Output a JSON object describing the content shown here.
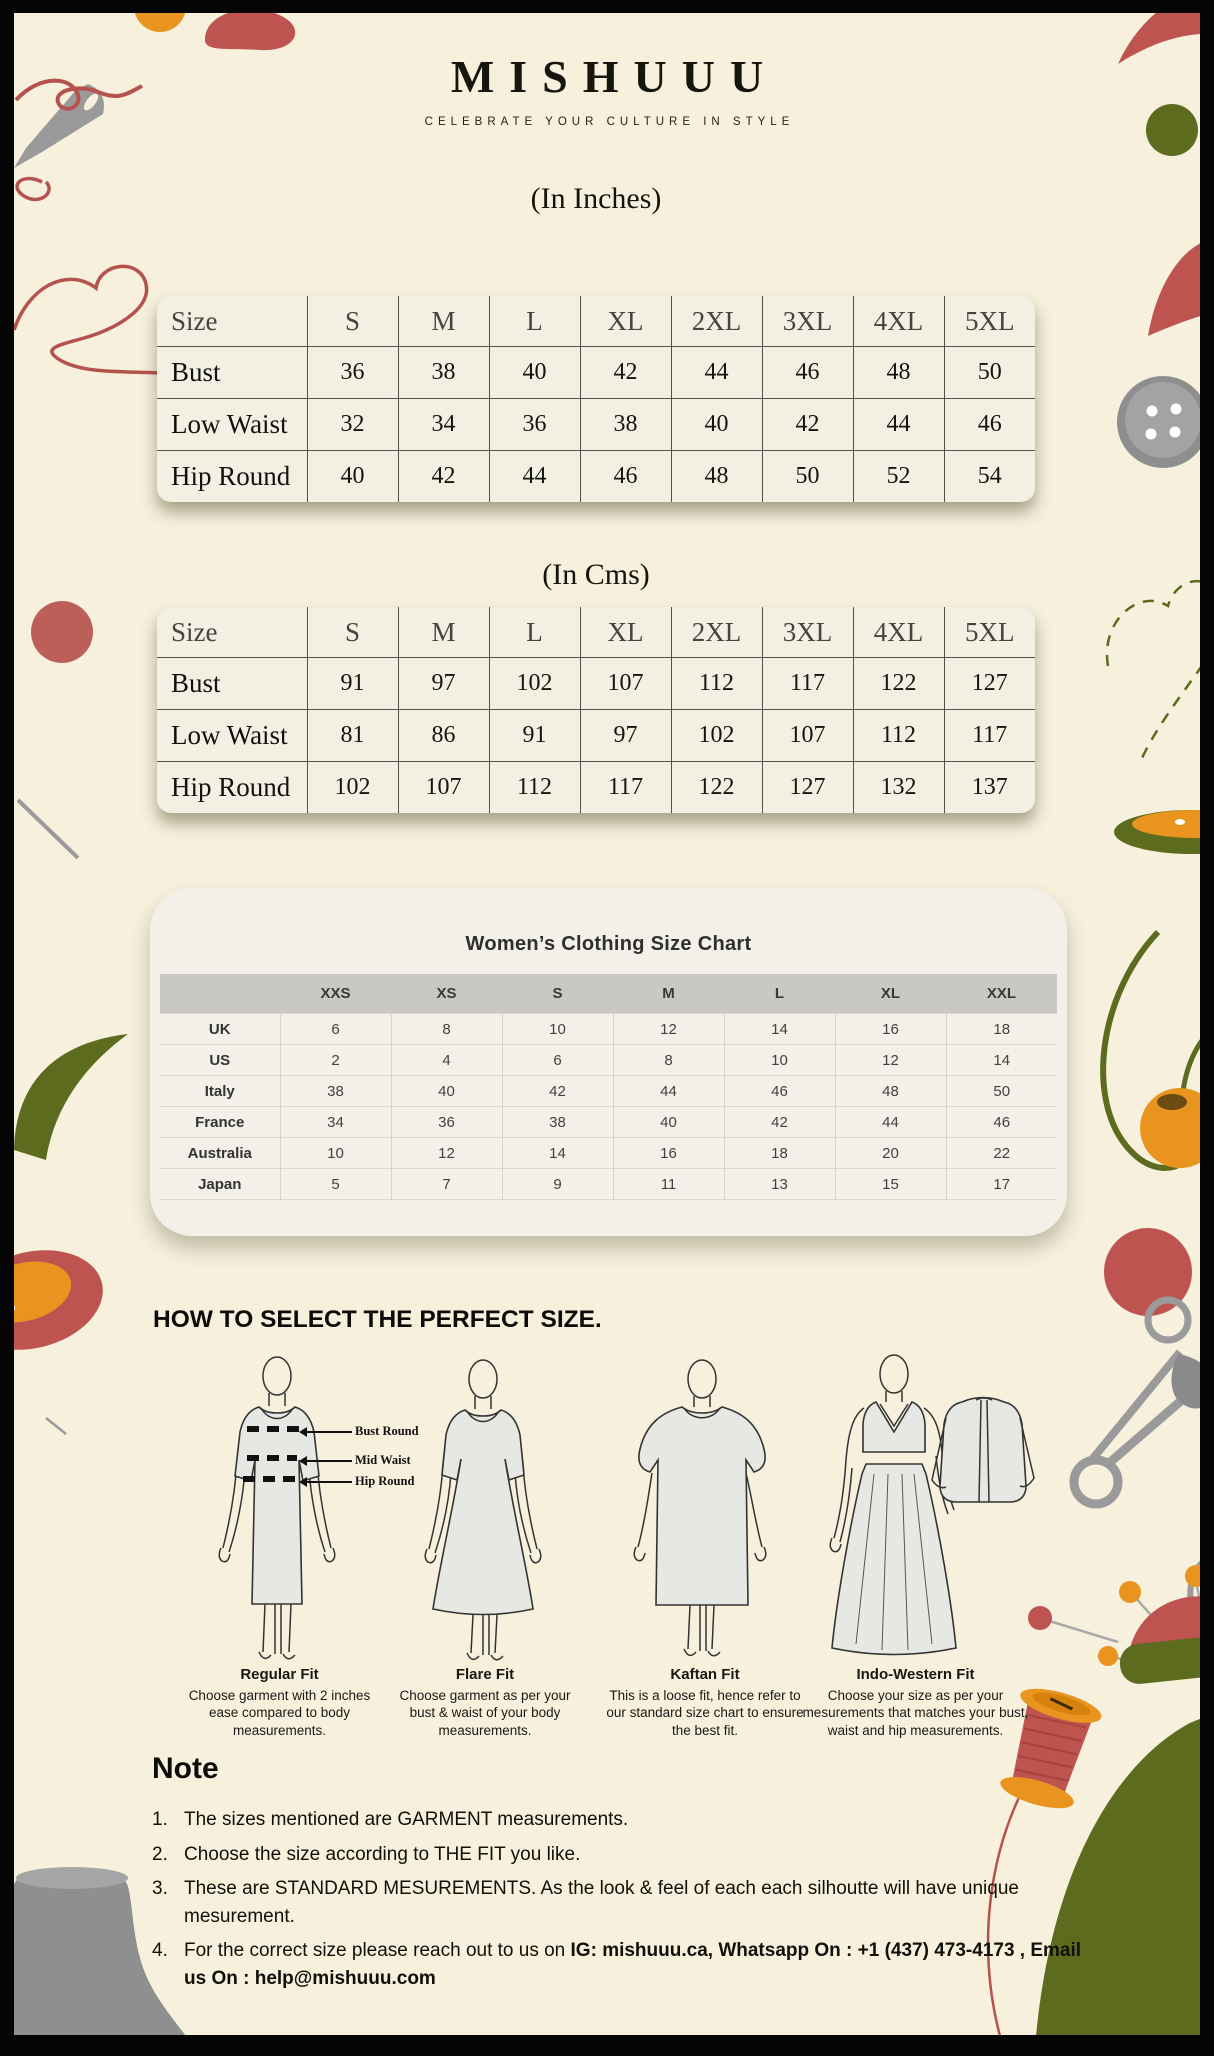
{
  "brand": {
    "name": "MISHUUU",
    "tagline": "CELEBRATE YOUR CULTURE IN STYLE"
  },
  "inches_table": {
    "title": "(In Inches)",
    "header": [
      "Size",
      "S",
      "M",
      "L",
      "XL",
      "2XL",
      "3XL",
      "4XL",
      "5XL"
    ],
    "rows": [
      {
        "label": "Bust",
        "values": [
          36,
          38,
          40,
          42,
          44,
          46,
          48,
          50
        ]
      },
      {
        "label": "Low Waist",
        "values": [
          32,
          34,
          36,
          38,
          40,
          42,
          44,
          46
        ]
      },
      {
        "label": "Hip Round",
        "values": [
          40,
          42,
          44,
          46,
          48,
          50,
          52,
          54
        ]
      }
    ]
  },
  "cms_table": {
    "title": "(In Cms)",
    "header": [
      "Size",
      "S",
      "M",
      "L",
      "XL",
      "2XL",
      "3XL",
      "4XL",
      "5XL"
    ],
    "rows": [
      {
        "label": "Bust",
        "values": [
          91,
          97,
          102,
          107,
          112,
          117,
          122,
          127
        ]
      },
      {
        "label": "Low Waist",
        "values": [
          81,
          86,
          91,
          97,
          102,
          107,
          112,
          117
        ]
      },
      {
        "label": "Hip Round",
        "values": [
          102,
          107,
          112,
          117,
          122,
          127,
          132,
          137
        ]
      }
    ]
  },
  "womens_chart": {
    "title": "Women’s Clothing Size Chart",
    "header": [
      "",
      "XXS",
      "XS",
      "S",
      "M",
      "L",
      "XL",
      "XXL"
    ],
    "rows": [
      {
        "label": "UK",
        "values": [
          6,
          8,
          10,
          12,
          14,
          16,
          18
        ]
      },
      {
        "label": "US",
        "values": [
          2,
          4,
          6,
          8,
          10,
          12,
          14
        ]
      },
      {
        "label": "Italy",
        "values": [
          38,
          40,
          42,
          44,
          46,
          48,
          50
        ]
      },
      {
        "label": "France",
        "values": [
          34,
          36,
          38,
          40,
          42,
          44,
          46
        ]
      },
      {
        "label": "Australia",
        "values": [
          10,
          12,
          14,
          16,
          18,
          20,
          22
        ]
      },
      {
        "label": "Japan",
        "values": [
          5,
          7,
          9,
          11,
          13,
          15,
          17
        ]
      }
    ]
  },
  "how_to": {
    "heading": "HOW TO SELECT THE PERFECT SIZE."
  },
  "fits": [
    {
      "title": "Regular Fit",
      "description": "Choose garment with 2 inches ease compared to body measurements.",
      "annotations": [
        "Bust Round",
        "Mid Waist",
        "Hip Round"
      ]
    },
    {
      "title": "Flare Fit",
      "description": "Choose garment as per your bust & waist of your body measurements."
    },
    {
      "title": "Kaftan Fit",
      "description": "This is a loose fit, hence refer to our standard size chart to ensure the best fit."
    },
    {
      "title": "Indo-Western Fit",
      "description": "Choose your size as per your mesurements that matches your bust, waist and hip measurements."
    }
  ],
  "note": {
    "heading": "Note",
    "items": [
      {
        "text": "The sizes mentioned are GARMENT measurements."
      },
      {
        "text": "Choose the size according to THE FIT you like."
      },
      {
        "text": "These are STANDARD MESUREMENTS. As the look & feel of each each silhoutte will have unique mesurement."
      },
      {
        "text": "For the correct size please reach out to us on ",
        "bold": "IG: mishuuu.ca, Whatsapp On : +1 (437) 473-4173 , Email us On : help@mishuuu.com"
      }
    ]
  },
  "colors": {
    "frame": "#000000",
    "cream": "#f6f0dd",
    "accent_red": "#bd5450",
    "olive": "#5c6b1e",
    "orange": "#e8941f",
    "gray": "#9a9a9a"
  }
}
